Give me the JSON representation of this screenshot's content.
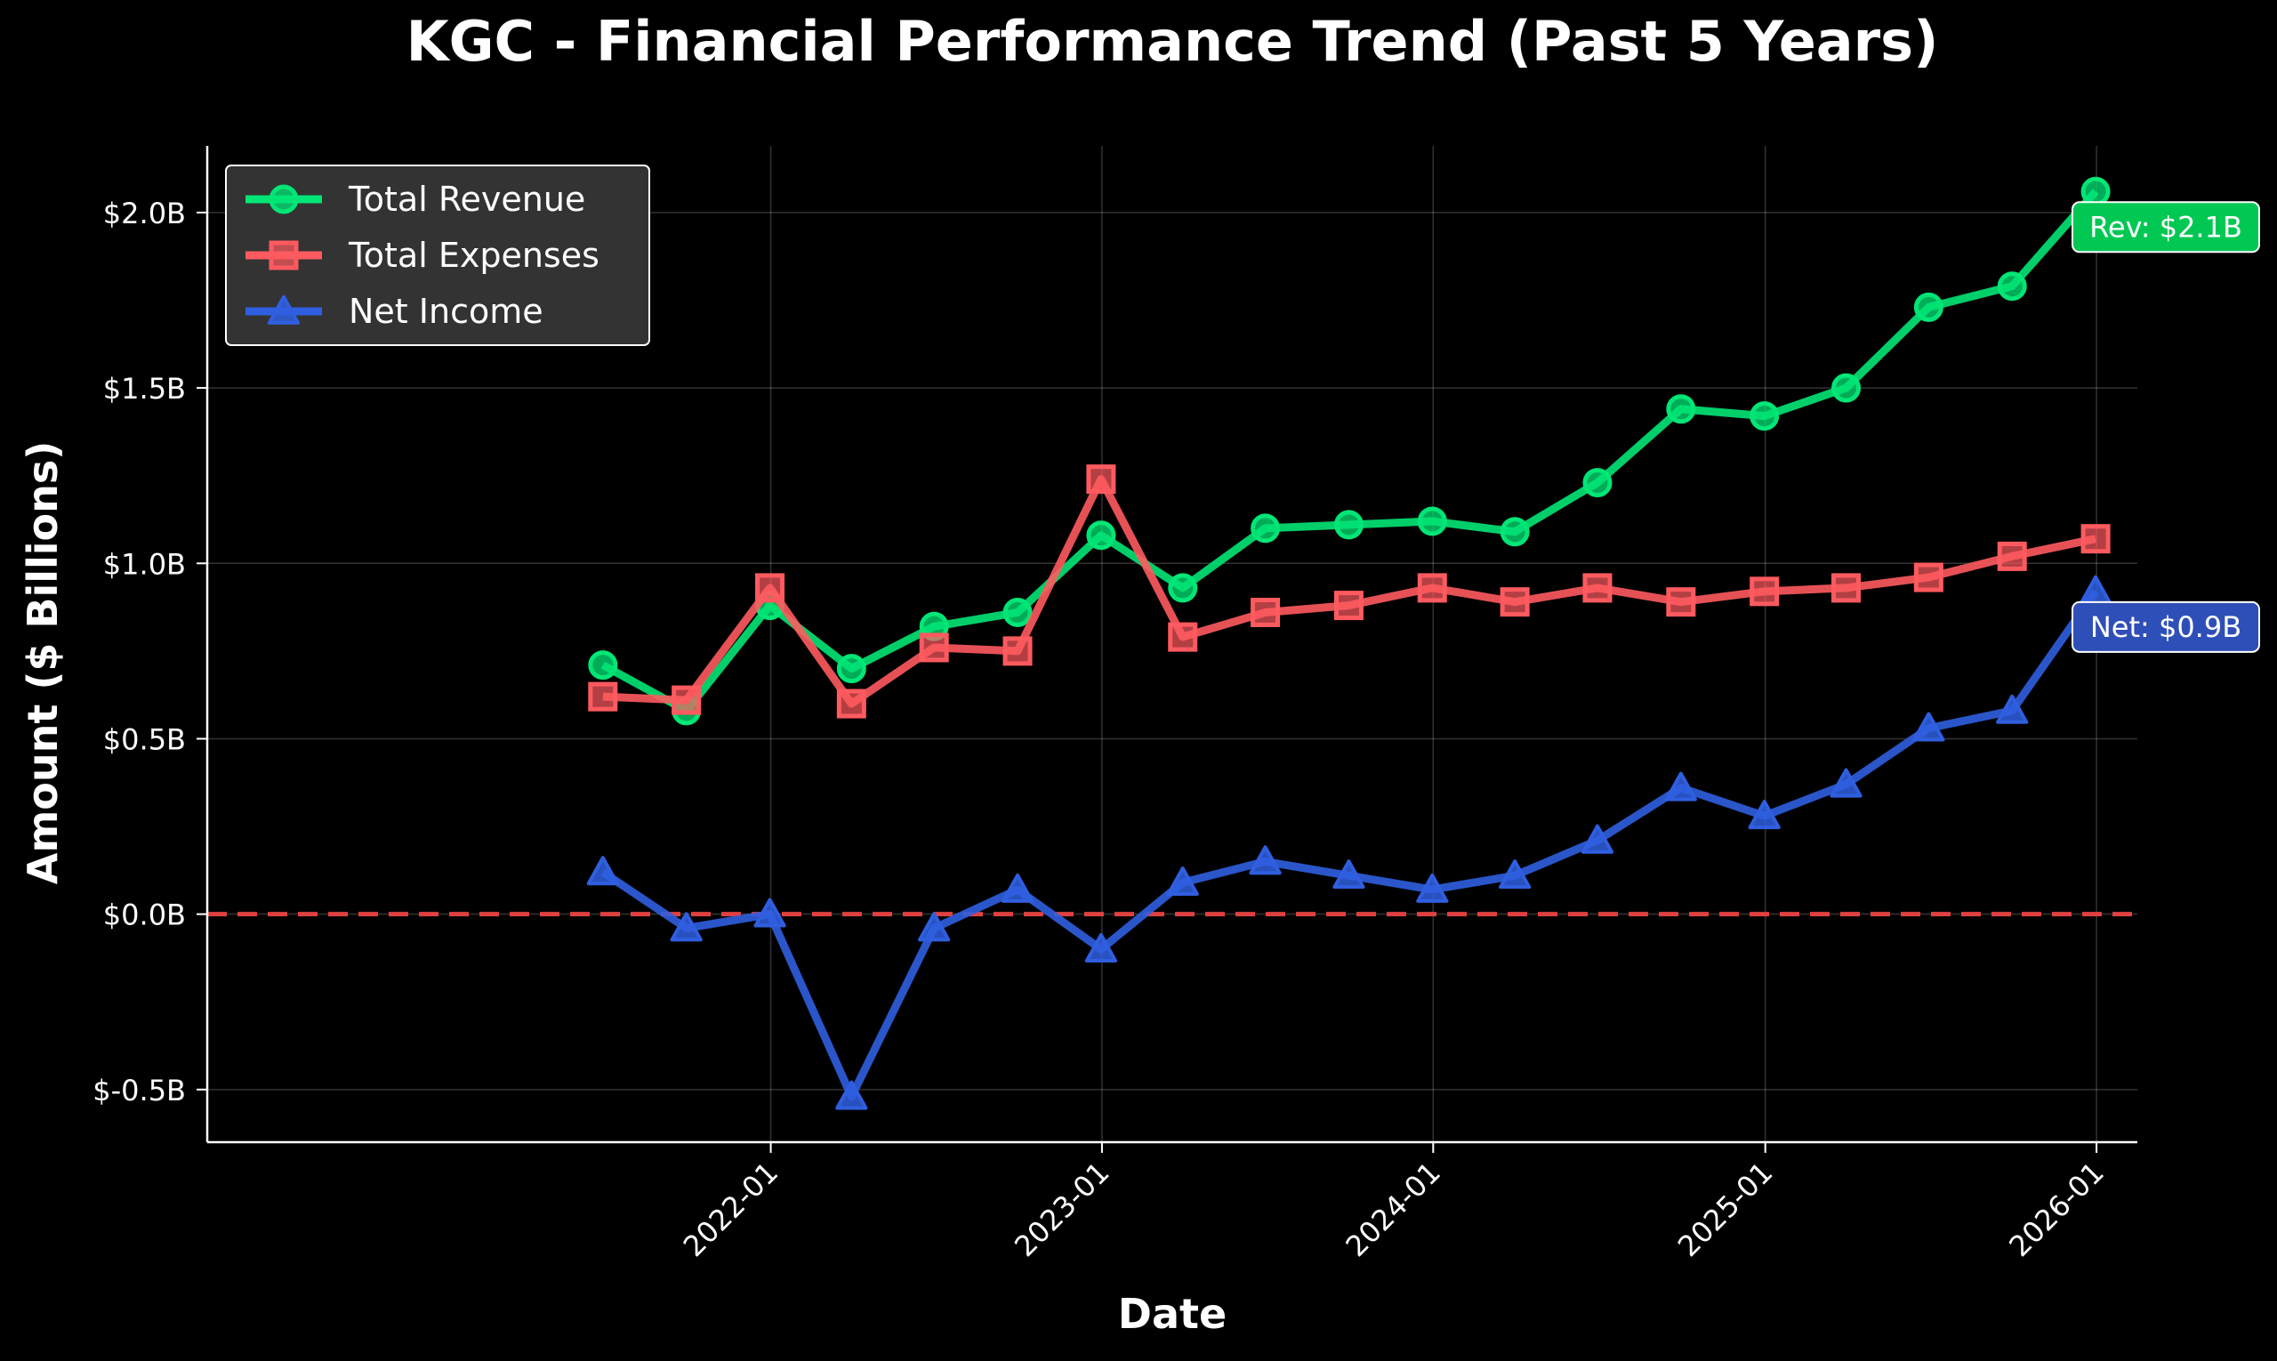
{
  "chart_data": {
    "type": "line",
    "title": "KGC - Financial Performance Trend (Past 5 Years)",
    "xlabel": "Date",
    "ylabel": "Amount ($ Billions)",
    "x_ticks": [
      "2022-01",
      "2023-01",
      "2024-01",
      "2025-01",
      "2026-01"
    ],
    "y_ticks": [
      "$-0.5B",
      "$0.0B",
      "$0.5B",
      "$1.0B",
      "$1.5B",
      "$2.0B"
    ],
    "ylim": [
      -0.65,
      2.19
    ],
    "xlim": [
      "2020-04-20",
      "2026-02-15"
    ],
    "grid": true,
    "legend_position": "top-left",
    "zero_line": {
      "value": 0,
      "color": "#e04040",
      "style": "dashed"
    },
    "x": [
      "2021-06-30",
      "2021-09-30",
      "2021-12-31",
      "2022-03-31",
      "2022-06-30",
      "2022-09-30",
      "2022-12-31",
      "2023-03-31",
      "2023-06-30",
      "2023-09-30",
      "2023-12-31",
      "2024-03-31",
      "2024-06-30",
      "2024-09-30",
      "2024-12-31",
      "2025-03-31",
      "2025-06-30",
      "2025-09-30",
      "2025-12-31"
    ],
    "series": [
      {
        "name": "Total Revenue",
        "color": "#00e676",
        "marker": "circle",
        "values": [
          0.71,
          0.58,
          0.88,
          0.7,
          0.82,
          0.86,
          1.08,
          0.93,
          1.1,
          1.11,
          1.12,
          1.09,
          1.23,
          1.44,
          1.42,
          1.5,
          1.73,
          1.79,
          2.06
        ]
      },
      {
        "name": "Total Expenses",
        "color": "#ff5a5f",
        "marker": "square",
        "values": [
          0.62,
          0.61,
          0.93,
          0.6,
          0.76,
          0.75,
          1.24,
          0.79,
          0.86,
          0.88,
          0.93,
          0.89,
          0.93,
          0.89,
          0.92,
          0.93,
          0.96,
          1.02,
          1.07
        ]
      },
      {
        "name": "Net Income",
        "color": "#2f5fe0",
        "marker": "triangle",
        "values": [
          0.12,
          -0.04,
          0.0,
          -0.52,
          -0.04,
          0.07,
          -0.1,
          0.09,
          0.15,
          0.11,
          0.07,
          0.11,
          0.21,
          0.36,
          0.28,
          0.37,
          0.53,
          0.58,
          0.92
        ]
      }
    ],
    "annotations": [
      {
        "text": "Rev: $2.1B",
        "series": "Total Revenue",
        "bg": "#00c853",
        "border": "#ffffff"
      },
      {
        "text": "Net: $0.9B",
        "series": "Net Income",
        "bg": "#2f4fb8",
        "border": "#ffffff"
      }
    ]
  }
}
